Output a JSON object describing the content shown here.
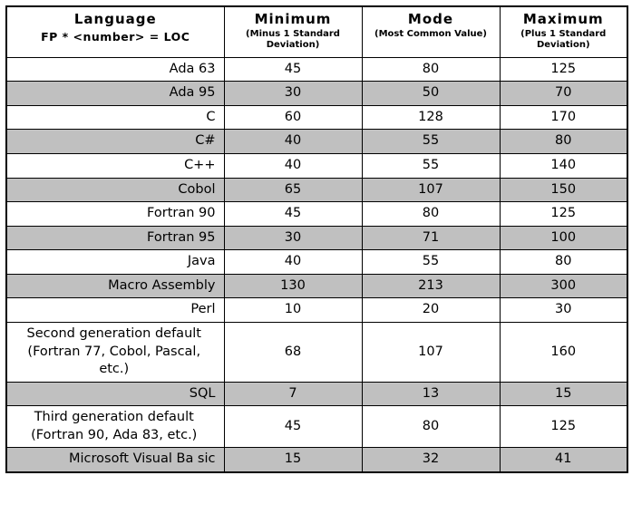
{
  "table": {
    "columns": [
      {
        "title": "Language",
        "subtitle": "FP * <number> = LOC"
      },
      {
        "title": "Minimum",
        "subtitle": "(Minus 1 Standard Deviation)"
      },
      {
        "title": "Mode",
        "subtitle": "(Most Common Value)"
      },
      {
        "title": "Maximum",
        "subtitle": "(Plus 1 Standard Deviation)"
      }
    ],
    "rows": [
      {
        "language": "Ada 63",
        "minimum": "45",
        "mode": "80",
        "maximum": "125",
        "shaded": false
      },
      {
        "language": "Ada 95",
        "minimum": "30",
        "mode": "50",
        "maximum": "70",
        "shaded": true
      },
      {
        "language": "C",
        "minimum": "60",
        "mode": "128",
        "maximum": "170",
        "shaded": false
      },
      {
        "language": "C#",
        "minimum": "40",
        "mode": "55",
        "maximum": "80",
        "shaded": true
      },
      {
        "language": "C++",
        "minimum": "40",
        "mode": "55",
        "maximum": "140",
        "shaded": false
      },
      {
        "language": "Cobol",
        "minimum": "65",
        "mode": "107",
        "maximum": "150",
        "shaded": true
      },
      {
        "language": "Fortran 90",
        "minimum": "45",
        "mode": "80",
        "maximum": "125",
        "shaded": false
      },
      {
        "language": "Fortran 95",
        "minimum": "30",
        "mode": "71",
        "maximum": "100",
        "shaded": true
      },
      {
        "language": "Java",
        "minimum": "40",
        "mode": "55",
        "maximum": "80",
        "shaded": false
      },
      {
        "language": "Macro Assembly",
        "minimum": "130",
        "mode": "213",
        "maximum": "300",
        "shaded": true
      },
      {
        "language": "Perl",
        "minimum": "10",
        "mode": "20",
        "maximum": "30",
        "shaded": false
      },
      {
        "language": "Second generation default (Fortran 77, Cobol, Pascal, etc.)",
        "minimum": "68",
        "mode": "107",
        "maximum": "160",
        "shaded": false
      },
      {
        "language": "SQL",
        "minimum": "7",
        "mode": "13",
        "maximum": "15",
        "shaded": true
      },
      {
        "language": "Third generation default (Fortran 90, Ada 83, etc.)",
        "minimum": "45",
        "mode": "80",
        "maximum": "125",
        "shaded": false
      },
      {
        "language": "Microsoft Visual Ba sic",
        "minimum": "15",
        "mode": "32",
        "maximum": "41",
        "shaded": true
      }
    ]
  },
  "colors": {
    "shaded_row": "#c0c0c0",
    "border": "#000000",
    "background": "#ffffff"
  }
}
